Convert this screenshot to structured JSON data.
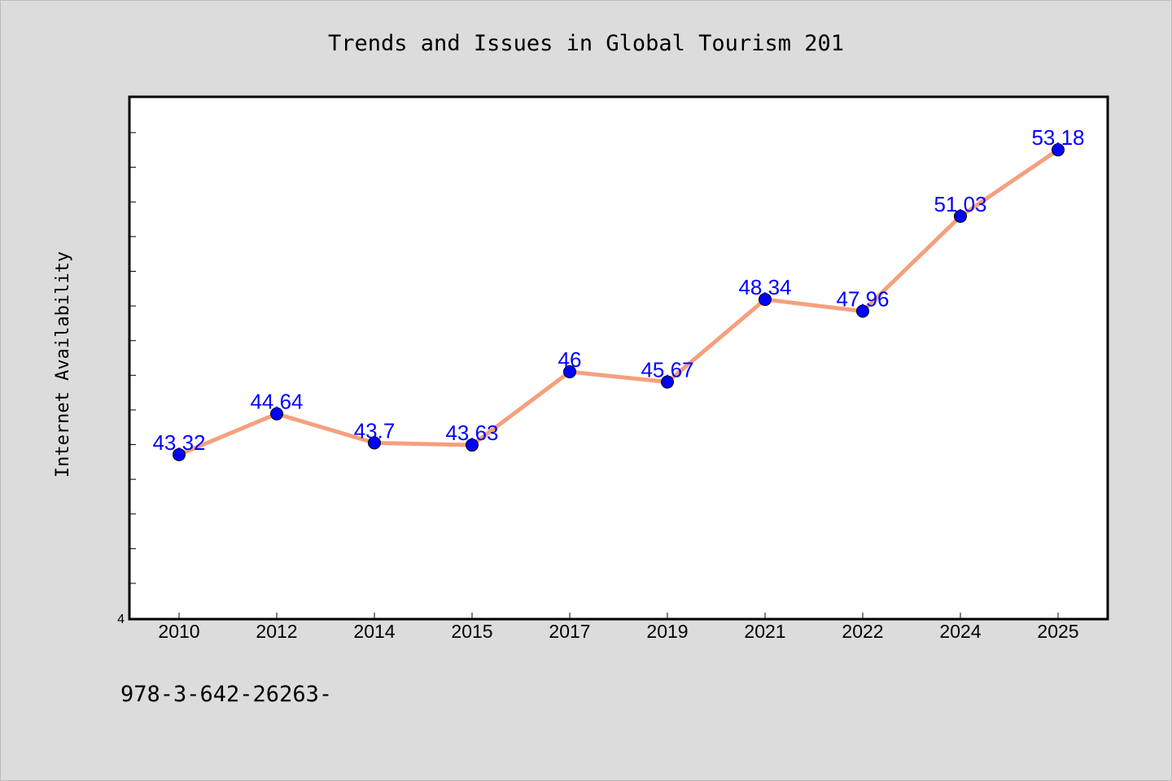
{
  "chart_data": {
    "type": "line",
    "title": "Trends and Issues in Global Tourism 201",
    "xlabel": "",
    "ylabel": "Internet Availability",
    "categories": [
      "2010",
      "2012",
      "2014",
      "2015",
      "2017",
      "2019",
      "2021",
      "2022",
      "2024",
      "2025"
    ],
    "series": [
      {
        "values": [
          43.32,
          44.64,
          43.7,
          43.63,
          46,
          45.67,
          48.34,
          47.96,
          51.03,
          53.18
        ],
        "data_labels": [
          "43.32",
          "44.64",
          "43.7",
          "43.63",
          "46",
          "45.67",
          "48.34",
          "47.96",
          "51.03",
          "53.18"
        ]
      }
    ],
    "ylim": [
      38,
      53.5
    ],
    "y_tick_labels": [
      {
        "value": 38,
        "label": "4"
      }
    ],
    "grid": false,
    "line_color": "#f5a07e",
    "marker_color": "#0000ff",
    "label_color": "#0000ff",
    "background_color": "#dcdcdc",
    "plot_background": "#ffffff"
  },
  "footer": {
    "text": "978-3-642-26263-"
  }
}
